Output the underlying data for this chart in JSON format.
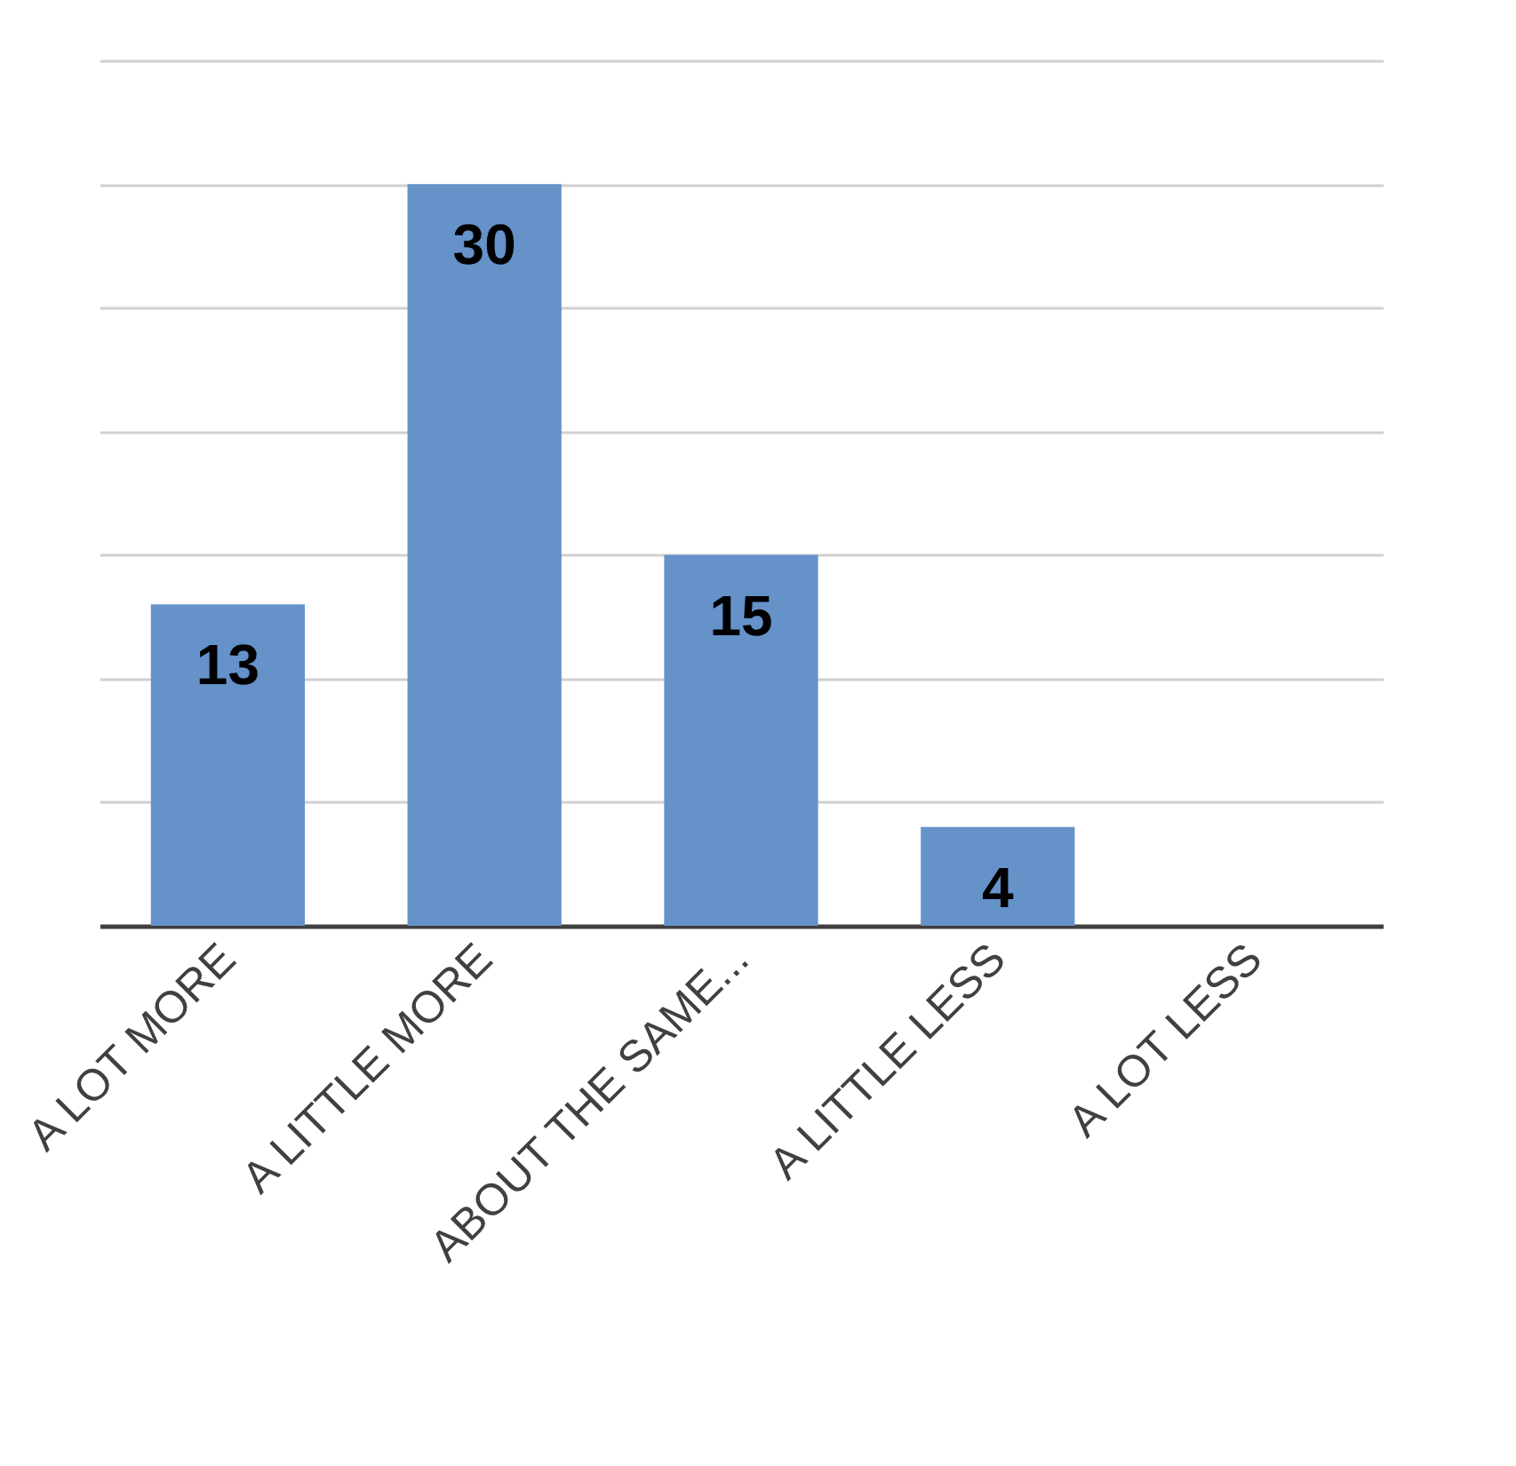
{
  "chart_data": {
    "type": "bar",
    "categories": [
      "A LOT MORE",
      "A LITTLE MORE",
      "ABOUT THE SAME...",
      "A LITTLE LESS",
      "A LOT LESS"
    ],
    "values": [
      13,
      30,
      15,
      4,
      0
    ],
    "value_labels": [
      "13",
      "30",
      "15",
      "4",
      null
    ],
    "color": "#6592c9",
    "ylim": [
      0,
      35
    ],
    "yticks": [
      {
        "value": 0,
        "label": null
      },
      {
        "value": 5,
        "label": null
      },
      {
        "value": 10,
        "label": null
      },
      {
        "value": 15,
        "label": null
      },
      {
        "value": 20,
        "label": null
      },
      {
        "value": 25,
        "label": null
      },
      {
        "value": 30,
        "label": null
      },
      {
        "value": 35,
        "label": null
      }
    ],
    "tick_labels": "x",
    "grid": "y"
  }
}
